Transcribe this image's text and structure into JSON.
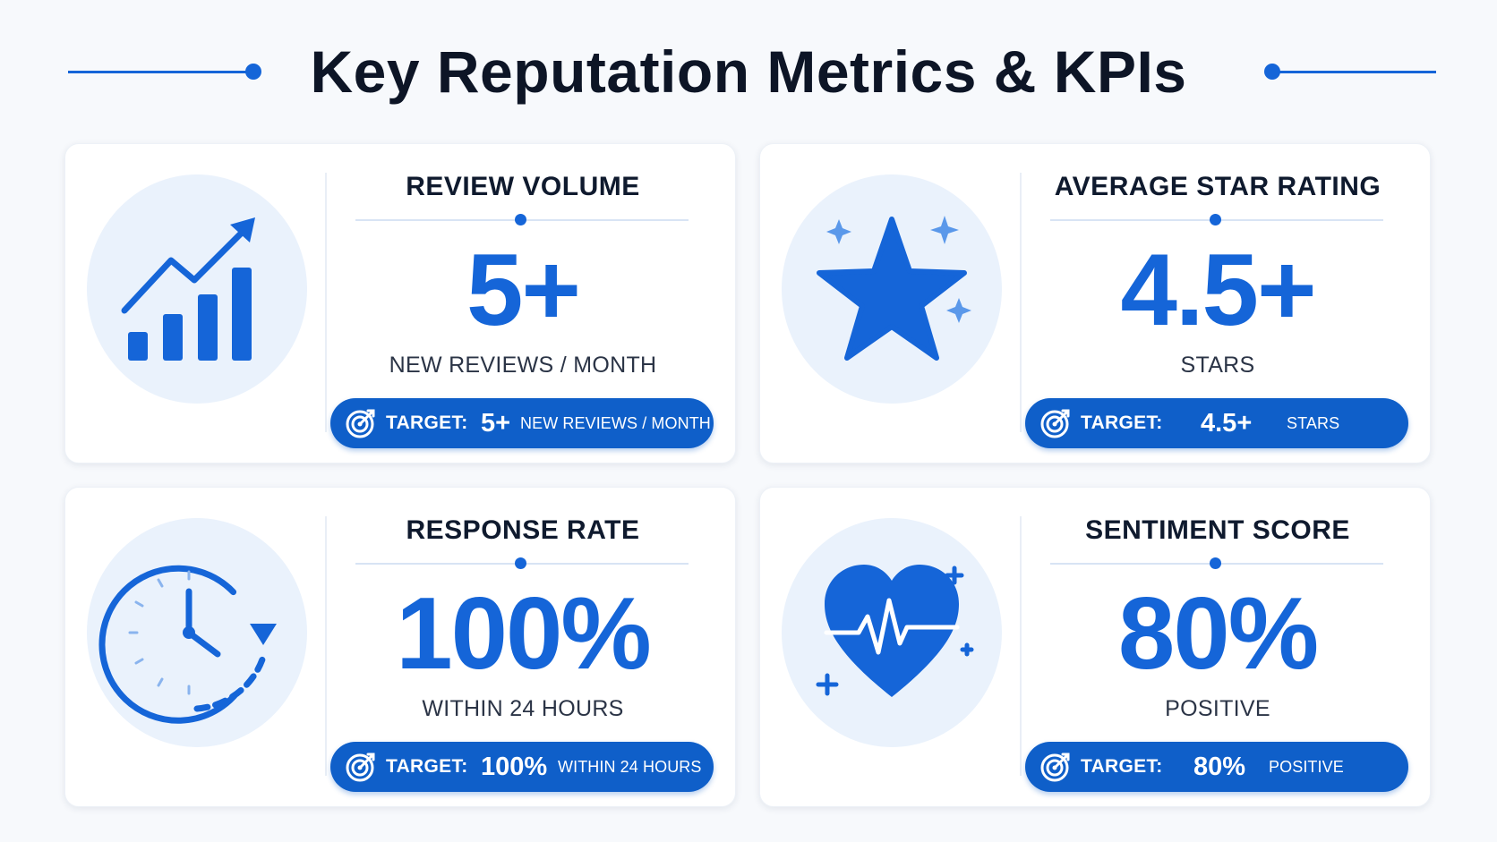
{
  "header": {
    "title": "Key Reputation Metrics & KPIs"
  },
  "colors": {
    "accent": "#1565d8",
    "pill": "#0f5fc9",
    "icon_bg": "#eaf2fc",
    "text_dark": "#0f1a2e"
  },
  "target_label": "TARGET:",
  "metrics": [
    {
      "title": "REVIEW VOLUME",
      "value": "5+",
      "unit": "NEW REVIEWS / MONTH",
      "target_value": "5+",
      "target_unit": "NEW REVIEWS / MONTH",
      "icon": "growth-chart-icon"
    },
    {
      "title": "AVERAGE STAR RATING",
      "value": "4.5+",
      "unit": "STARS",
      "target_value": "4.5+",
      "target_unit": "STARS",
      "icon": "star-icon"
    },
    {
      "title": "RESPONSE RATE",
      "value": "100%",
      "unit": "WITHIN 24 HOURS",
      "target_value": "100%",
      "target_unit": "WITHIN 24 HOURS",
      "icon": "clock-icon"
    },
    {
      "title": "SENTIMENT SCORE",
      "value": "80%",
      "unit": "POSITIVE",
      "target_value": "80%",
      "target_unit": "POSITIVE",
      "icon": "heartbeat-icon"
    }
  ]
}
